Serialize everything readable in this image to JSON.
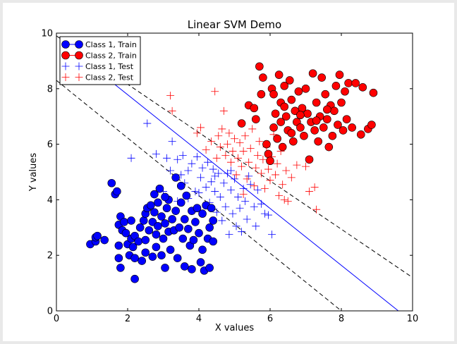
{
  "chart_data": {
    "type": "scatter",
    "title": "Linear SVM Demo",
    "xlabel": "X values",
    "ylabel": "Y values",
    "xlim": [
      0,
      10
    ],
    "ylim": [
      0,
      10
    ],
    "xticks": [
      "0",
      "2",
      "4",
      "6",
      "8",
      "10"
    ],
    "yticks": [
      "0",
      "2",
      "4",
      "6",
      "8",
      "10"
    ],
    "grid": false,
    "legend_position": "top-left",
    "legend": [
      {
        "label": "Class 1, Train",
        "marker": "circle",
        "color": "#0000ff"
      },
      {
        "label": "Class 2, Train",
        "marker": "circle",
        "color": "#ff0000"
      },
      {
        "label": "Class 1, Test",
        "marker": "plus",
        "color": "#0000ff"
      },
      {
        "label": "Class 2, Test",
        "marker": "plus",
        "color": "#ff0000"
      }
    ],
    "lines": [
      {
        "name": "decision boundary",
        "style": "solid",
        "color": "#0000ff",
        "points": [
          [
            1.3,
            8.5
          ],
          [
            9.6,
            0
          ]
        ]
      },
      {
        "name": "upper margin",
        "style": "dashed",
        "color": "#000000",
        "points": [
          [
            0,
            9.9
          ],
          [
            10,
            1.2
          ]
        ]
      },
      {
        "name": "lower margin",
        "style": "dashed",
        "color": "#000000",
        "points": [
          [
            0,
            8.3
          ],
          [
            8.0,
            0
          ]
        ]
      }
    ],
    "series": [
      {
        "name": "Class 1, Train",
        "marker": "circle",
        "color": "#0000ff",
        "points": [
          [
            0.95,
            2.4
          ],
          [
            1.1,
            2.5
          ],
          [
            1.1,
            2.65
          ],
          [
            1.15,
            2.7
          ],
          [
            1.35,
            2.55
          ],
          [
            1.55,
            4.6
          ],
          [
            1.65,
            4.2
          ],
          [
            1.7,
            4.3
          ],
          [
            1.75,
            2.35
          ],
          [
            1.75,
            1.9
          ],
          [
            1.8,
            1.55
          ],
          [
            1.75,
            3.1
          ],
          [
            1.8,
            3.4
          ],
          [
            1.85,
            2.9
          ],
          [
            1.9,
            3.2
          ],
          [
            1.95,
            2.8
          ],
          [
            2.0,
            2.4
          ],
          [
            2.05,
            2.0
          ],
          [
            2.1,
            2.6
          ],
          [
            2.1,
            3.25
          ],
          [
            2.15,
            2.3
          ],
          [
            2.2,
            1.15
          ],
          [
            2.2,
            1.9
          ],
          [
            2.2,
            2.7
          ],
          [
            2.3,
            2.5
          ],
          [
            2.35,
            3.0
          ],
          [
            2.4,
            1.8
          ],
          [
            2.45,
            3.25
          ],
          [
            2.5,
            2.1
          ],
          [
            2.5,
            2.55
          ],
          [
            2.5,
            3.5
          ],
          [
            2.55,
            3.7
          ],
          [
            2.6,
            2.9
          ],
          [
            2.65,
            3.8
          ],
          [
            2.7,
            1.95
          ],
          [
            2.7,
            3.2
          ],
          [
            2.75,
            3.55
          ],
          [
            2.8,
            2.3
          ],
          [
            2.8,
            2.75
          ],
          [
            2.85,
            3.05
          ],
          [
            2.85,
            3.9
          ],
          [
            2.9,
            4.4
          ],
          [
            2.95,
            2.0
          ],
          [
            2.95,
            3.4
          ],
          [
            3.0,
            2.6
          ],
          [
            3.05,
            1.55
          ],
          [
            3.05,
            3.15
          ],
          [
            3.1,
            3.7
          ],
          [
            3.15,
            2.85
          ],
          [
            3.15,
            4.0
          ],
          [
            3.2,
            2.2
          ],
          [
            3.25,
            3.3
          ],
          [
            3.3,
            2.9
          ],
          [
            3.35,
            3.6
          ],
          [
            3.4,
            1.9
          ],
          [
            3.45,
            3.0
          ],
          [
            3.5,
            3.9
          ],
          [
            3.55,
            2.6
          ],
          [
            3.6,
            1.6
          ],
          [
            3.6,
            3.3
          ],
          [
            3.65,
            4.15
          ],
          [
            3.7,
            2.95
          ],
          [
            3.75,
            2.35
          ],
          [
            3.8,
            1.5
          ],
          [
            3.8,
            3.6
          ],
          [
            3.85,
            2.55
          ],
          [
            3.9,
            3.2
          ],
          [
            3.95,
            3.7
          ],
          [
            4.0,
            2.8
          ],
          [
            4.05,
            1.75
          ],
          [
            4.1,
            2.2
          ],
          [
            4.1,
            3.5
          ],
          [
            4.15,
            1.45
          ],
          [
            4.2,
            3.8
          ],
          [
            4.25,
            2.6
          ],
          [
            4.3,
            3.0
          ],
          [
            4.3,
            1.55
          ],
          [
            4.35,
            3.7
          ],
          [
            4.4,
            3.25
          ],
          [
            4.4,
            2.5
          ],
          [
            3.35,
            4.8
          ],
          [
            3.5,
            4.5
          ],
          [
            2.75,
            4.2
          ],
          [
            3.05,
            4.1
          ]
        ]
      },
      {
        "name": "Class 2, Train",
        "marker": "circle",
        "color": "#ff0000",
        "points": [
          [
            5.2,
            6.75
          ],
          [
            5.4,
            7.4
          ],
          [
            5.55,
            7.3
          ],
          [
            5.6,
            6.9
          ],
          [
            5.7,
            8.8
          ],
          [
            5.75,
            7.8
          ],
          [
            5.8,
            8.4
          ],
          [
            5.9,
            6.0
          ],
          [
            5.95,
            5.65
          ],
          [
            6.0,
            5.4
          ],
          [
            6.05,
            8.0
          ],
          [
            6.1,
            6.6
          ],
          [
            6.1,
            7.8
          ],
          [
            6.15,
            7.1
          ],
          [
            6.2,
            6.2
          ],
          [
            6.25,
            8.5
          ],
          [
            6.3,
            7.5
          ],
          [
            6.3,
            6.8
          ],
          [
            6.35,
            5.9
          ],
          [
            6.4,
            8.1
          ],
          [
            6.45,
            7.0
          ],
          [
            6.5,
            6.5
          ],
          [
            6.55,
            8.3
          ],
          [
            6.6,
            7.6
          ],
          [
            6.65,
            6.1
          ],
          [
            6.7,
            7.2
          ],
          [
            6.75,
            6.8
          ],
          [
            6.8,
            7.9
          ],
          [
            6.85,
            6.6
          ],
          [
            6.9,
            7.3
          ],
          [
            6.95,
            6.3
          ],
          [
            7.0,
            8.0
          ],
          [
            7.05,
            7.1
          ],
          [
            7.1,
            5.45
          ],
          [
            7.15,
            6.8
          ],
          [
            7.2,
            8.55
          ],
          [
            7.25,
            6.5
          ],
          [
            7.3,
            7.5
          ],
          [
            7.35,
            6.1
          ],
          [
            7.4,
            7.0
          ],
          [
            7.45,
            8.4
          ],
          [
            7.5,
            6.6
          ],
          [
            7.55,
            7.8
          ],
          [
            7.6,
            6.9
          ],
          [
            7.65,
            5.9
          ],
          [
            7.7,
            7.4
          ],
          [
            7.75,
            6.3
          ],
          [
            7.8,
            7.2
          ],
          [
            7.85,
            8.1
          ],
          [
            7.9,
            6.7
          ],
          [
            7.95,
            8.5
          ],
          [
            8.0,
            7.5
          ],
          [
            8.05,
            6.5
          ],
          [
            8.1,
            7.9
          ],
          [
            8.15,
            6.9
          ],
          [
            8.2,
            8.2
          ],
          [
            8.3,
            6.6
          ],
          [
            8.4,
            8.2
          ],
          [
            8.55,
            6.35
          ],
          [
            8.6,
            8.05
          ],
          [
            8.75,
            6.55
          ],
          [
            8.85,
            6.7
          ],
          [
            8.9,
            7.85
          ],
          [
            6.6,
            6.4
          ],
          [
            6.85,
            7.05
          ],
          [
            7.3,
            6.85
          ],
          [
            6.4,
            7.35
          ],
          [
            7.6,
            7.25
          ]
        ]
      },
      {
        "name": "Class 1, Test",
        "marker": "plus",
        "color": "#0000ff",
        "points": [
          [
            2.1,
            5.5
          ],
          [
            2.55,
            6.75
          ],
          [
            2.8,
            5.65
          ],
          [
            3.1,
            5.5
          ],
          [
            3.2,
            5.05
          ],
          [
            3.25,
            6.1
          ],
          [
            3.4,
            5.45
          ],
          [
            3.5,
            4.9
          ],
          [
            3.55,
            5.6
          ],
          [
            3.6,
            4.6
          ],
          [
            3.7,
            5.05
          ],
          [
            3.8,
            5.3
          ],
          [
            3.9,
            4.3
          ],
          [
            3.95,
            5.55
          ],
          [
            4.05,
            4.8
          ],
          [
            4.1,
            5.15
          ],
          [
            4.2,
            4.45
          ],
          [
            4.25,
            5.35
          ],
          [
            4.3,
            3.9
          ],
          [
            4.35,
            4.65
          ],
          [
            4.4,
            5.1
          ],
          [
            4.45,
            4.3
          ],
          [
            4.5,
            3.55
          ],
          [
            4.55,
            4.95
          ],
          [
            4.6,
            4.1
          ],
          [
            4.65,
            3.25
          ],
          [
            4.7,
            4.6
          ],
          [
            4.75,
            3.75
          ],
          [
            4.8,
            4.95
          ],
          [
            4.85,
            2.75
          ],
          [
            4.9,
            4.35
          ],
          [
            4.95,
            3.5
          ],
          [
            5.0,
            4.75
          ],
          [
            5.05,
            3.05
          ],
          [
            5.1,
            4.1
          ],
          [
            5.15,
            3.7
          ],
          [
            5.2,
            2.85
          ],
          [
            5.25,
            4.4
          ],
          [
            5.3,
            3.95
          ],
          [
            5.35,
            3.3
          ],
          [
            5.45,
            4.55
          ],
          [
            5.55,
            3.75
          ],
          [
            5.6,
            3.05
          ],
          [
            5.65,
            4.35
          ],
          [
            5.75,
            3.85
          ],
          [
            5.85,
            3.5
          ],
          [
            5.95,
            3.45
          ],
          [
            6.05,
            2.75
          ],
          [
            3.0,
            4.3
          ],
          [
            3.4,
            3.95
          ],
          [
            3.7,
            4.05
          ],
          [
            4.0,
            4.25
          ],
          [
            4.45,
            4.85
          ],
          [
            4.9,
            5.05
          ],
          [
            5.4,
            4.85
          ]
        ]
      },
      {
        "name": "Class 2, Test",
        "marker": "plus",
        "color": "#ff0000",
        "points": [
          [
            3.2,
            7.75
          ],
          [
            3.25,
            7.2
          ],
          [
            3.95,
            6.4
          ],
          [
            4.05,
            6.6
          ],
          [
            4.2,
            5.8
          ],
          [
            4.35,
            6.1
          ],
          [
            4.45,
            7.9
          ],
          [
            4.5,
            5.5
          ],
          [
            4.55,
            6.3
          ],
          [
            4.6,
            5.9
          ],
          [
            4.65,
            6.55
          ],
          [
            4.7,
            7.2
          ],
          [
            4.75,
            5.6
          ],
          [
            4.8,
            6.0
          ],
          [
            4.85,
            6.4
          ],
          [
            4.9,
            5.35
          ],
          [
            4.95,
            5.75
          ],
          [
            5.0,
            6.2
          ],
          [
            5.05,
            4.9
          ],
          [
            5.1,
            5.5
          ],
          [
            5.15,
            6.05
          ],
          [
            5.2,
            5.2
          ],
          [
            5.25,
            5.75
          ],
          [
            5.3,
            6.3
          ],
          [
            5.35,
            4.75
          ],
          [
            5.4,
            5.35
          ],
          [
            5.45,
            5.85
          ],
          [
            5.5,
            6.55
          ],
          [
            5.55,
            4.5
          ],
          [
            5.6,
            5.15
          ],
          [
            5.65,
            5.6
          ],
          [
            5.7,
            6.1
          ],
          [
            5.75,
            4.95
          ],
          [
            5.8,
            5.45
          ],
          [
            5.85,
            4.4
          ],
          [
            5.9,
            5.9
          ],
          [
            5.95,
            5.1
          ],
          [
            6.0,
            4.7
          ],
          [
            6.05,
            5.55
          ],
          [
            6.1,
            6.35
          ],
          [
            6.15,
            4.9
          ],
          [
            6.2,
            5.3
          ],
          [
            6.25,
            4.15
          ],
          [
            6.3,
            5.75
          ],
          [
            6.35,
            4.55
          ],
          [
            6.4,
            4.0
          ],
          [
            6.45,
            5.05
          ],
          [
            6.5,
            3.95
          ],
          [
            6.6,
            4.8
          ],
          [
            6.75,
            5.25
          ],
          [
            7.0,
            5.2
          ],
          [
            7.1,
            4.3
          ],
          [
            7.25,
            4.45
          ],
          [
            7.3,
            3.65
          ],
          [
            5.25,
            4.2
          ]
        ]
      }
    ]
  }
}
